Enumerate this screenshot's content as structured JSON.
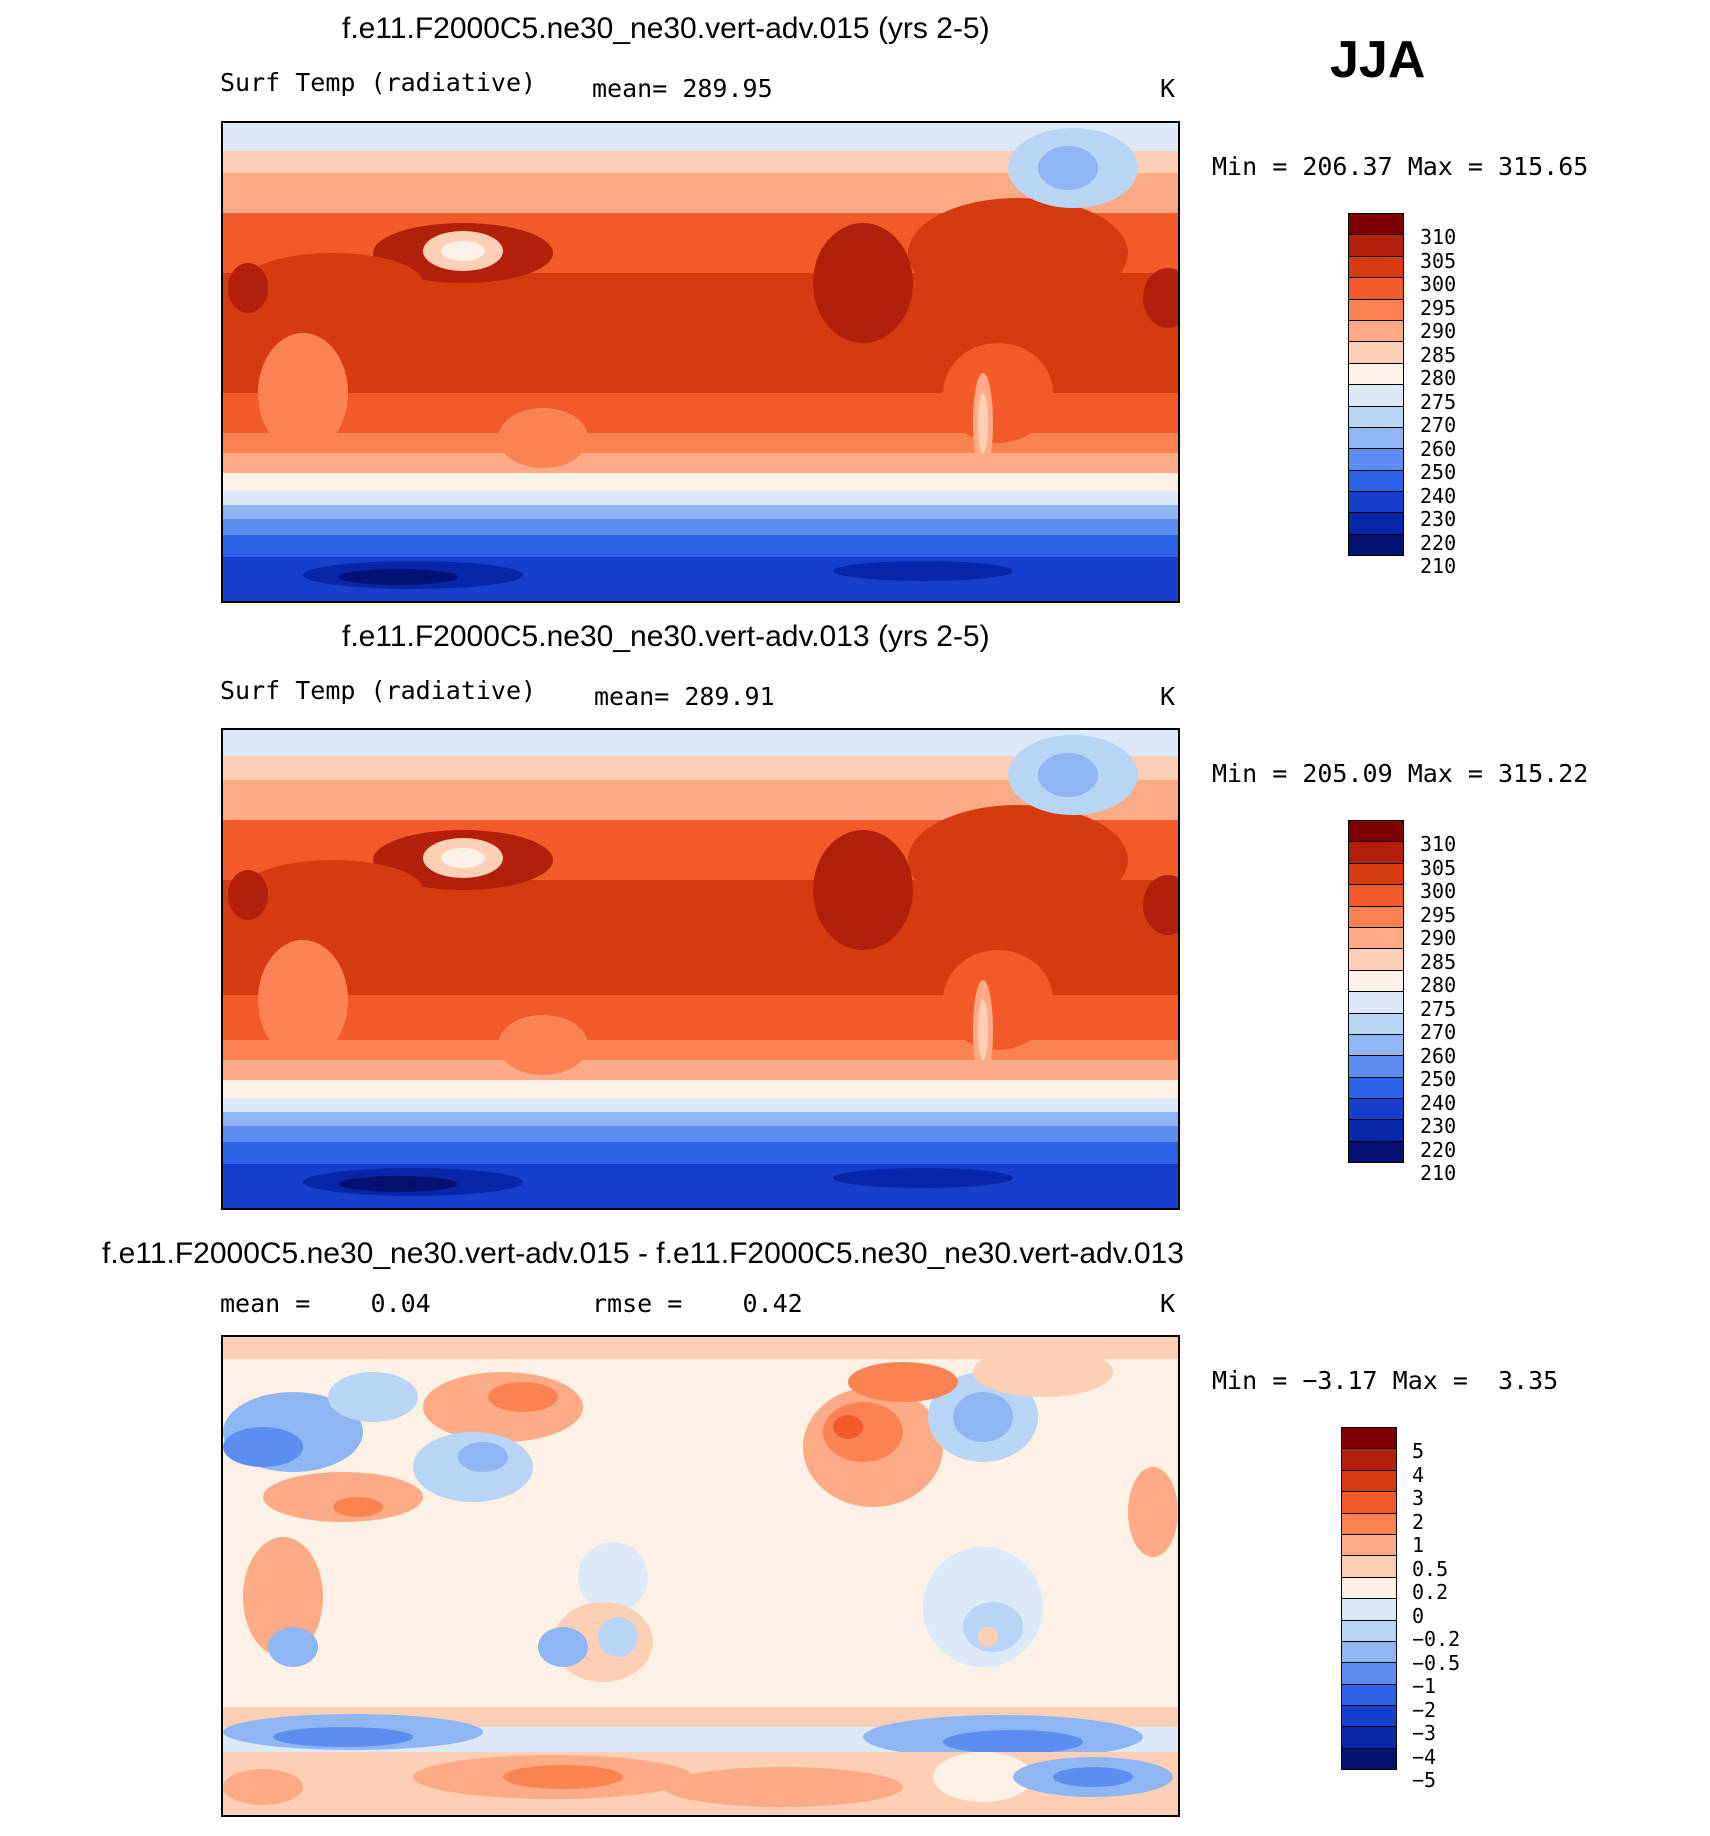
{
  "season": "JJA",
  "panels": [
    {
      "title": "f.e11.F2000C5.ne30_ne30.vert-adv.015 (yrs 2-5)",
      "variable": "Surf Temp (radiative)",
      "stat1_label": "mean=",
      "stat1_value": "289.95",
      "stat2_label": "",
      "stat2_value": "",
      "units": "K",
      "min_label": "Min",
      "min_value": "206.37",
      "max_label": "Max",
      "max_value": "315.65",
      "field": "absolute"
    },
    {
      "title": "f.e11.F2000C5.ne30_ne30.vert-adv.013 (yrs 2-5)",
      "variable": "Surf Temp (radiative)",
      "stat1_label": "mean=",
      "stat1_value": "289.91",
      "stat2_label": "",
      "stat2_value": "",
      "units": "K",
      "min_label": "Min",
      "min_value": "205.09",
      "max_label": "Max",
      "max_value": "315.22",
      "field": "absolute"
    },
    {
      "title": "f.e11.F2000C5.ne30_ne30.vert-adv.015 - f.e11.F2000C5.ne30_ne30.vert-adv.013",
      "variable": "",
      "stat1_label": "mean =",
      "stat1_value": "0.04",
      "stat2_label": "rmse =",
      "stat2_value": "0.42",
      "units": "K",
      "min_label": "Min",
      "min_value": "−3.17",
      "max_label": "Max",
      "max_value": "3.35",
      "field": "difference"
    }
  ],
  "colorbars": {
    "absolute": {
      "colors": [
        "#7f0000",
        "#b0200a",
        "#d63a0f",
        "#f25a2a",
        "#fb8353",
        "#fcab86",
        "#fdd0b5",
        "#fdf0e4",
        "#dbe9f8",
        "#b8d5f6",
        "#8fb6f3",
        "#5b8eee",
        "#2e62e6",
        "#1640cc",
        "#0726a8",
        "#031173"
      ],
      "labels": [
        "310",
        "305",
        "300",
        "295",
        "290",
        "285",
        "280",
        "275",
        "270",
        "260",
        "250",
        "240",
        "230",
        "220",
        "210"
      ]
    },
    "difference": {
      "colors": [
        "#7f0000",
        "#b0200a",
        "#d63a0f",
        "#f25a2a",
        "#fb8353",
        "#fcab86",
        "#fdd0b5",
        "#fdf0e4",
        "#dbe9f8",
        "#b8d5f6",
        "#8fb6f3",
        "#5b8eee",
        "#2e62e6",
        "#1640cc",
        "#0726a8",
        "#031173"
      ],
      "labels": [
        "5",
        "4",
        "3",
        "2",
        "1",
        "0.5",
        "0.2",
        "0",
        "−0.2",
        "−0.5",
        "−1",
        "−2",
        "−3",
        "−4",
        "−5"
      ]
    }
  }
}
